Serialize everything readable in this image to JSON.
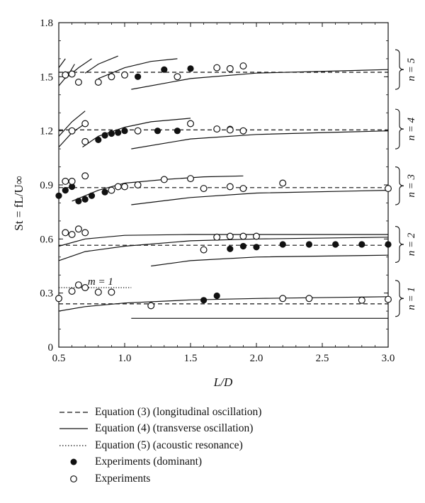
{
  "chart_data": {
    "type": "scatter",
    "xlabel": "L/D",
    "ylabel": "St = fL/U∞",
    "xlim": [
      0.5,
      3.0
    ],
    "ylim": [
      0,
      1.8
    ],
    "xticks": [
      "0.5",
      "1.0",
      "1.5",
      "2.0",
      "2.5",
      "3.0"
    ],
    "yticks": [
      "0",
      "0.3",
      "0.6",
      "0.9",
      "1.2",
      "1.5",
      "1.8"
    ],
    "grid": false,
    "mode_labels": [
      "n = 1",
      "n = 2",
      "n = 3",
      "n = 4",
      "n = 5"
    ],
    "mode_ranges": [
      [
        0.17,
        0.37
      ],
      [
        0.47,
        0.67
      ],
      [
        0.79,
        1.0
      ],
      [
        1.1,
        1.32
      ],
      [
        1.43,
        1.65
      ]
    ],
    "m_label": "m = 1",
    "legend": [
      {
        "symbol": "dashed",
        "label": "Equation (3) (longitudinal oscillation)"
      },
      {
        "symbol": "solid",
        "label": "Equation (4) (transverse oscillation)"
      },
      {
        "symbol": "dotted",
        "label": "Equation (5) (acoustic resonance)"
      },
      {
        "symbol": "filled",
        "label": "Experiments (dominant)"
      },
      {
        "symbol": "open",
        "label": "Experiments"
      }
    ],
    "series": [
      {
        "name": "Equation (3) (longitudinal oscillation)",
        "style": "dashed",
        "lines": [
          {
            "x": [
              0.5,
              3.0
            ],
            "y": [
              0.24,
              0.24
            ]
          },
          {
            "x": [
              0.5,
              3.0
            ],
            "y": [
              0.565,
              0.565
            ]
          },
          {
            "x": [
              0.5,
              3.0
            ],
            "y": [
              0.885,
              0.885
            ]
          },
          {
            "x": [
              0.5,
              3.0
            ],
            "y": [
              1.205,
              1.205
            ]
          },
          {
            "x": [
              0.5,
              3.0
            ],
            "y": [
              1.525,
              1.525
            ]
          }
        ]
      },
      {
        "name": "Equation (4) (transverse oscillation)",
        "style": "solid",
        "lines": [
          {
            "x": [
              1.05,
              3.0
            ],
            "y": [
              0.16,
              0.16
            ]
          },
          {
            "x": [
              0.5,
              0.7,
              1.0,
              1.5,
              2.0,
              3.0
            ],
            "y": [
              0.2,
              0.225,
              0.245,
              0.262,
              0.27,
              0.28
            ]
          },
          {
            "x": [
              1.2,
              1.5,
              2.0,
              3.0
            ],
            "y": [
              0.45,
              0.48,
              0.5,
              0.51
            ]
          },
          {
            "x": [
              0.5,
              0.7,
              1.0,
              1.5,
              2.0,
              3.0
            ],
            "y": [
              0.48,
              0.53,
              0.56,
              0.59,
              0.6,
              0.61
            ]
          },
          {
            "x": [
              0.5,
              0.7,
              1.0,
              1.5,
              2.0,
              3.0
            ],
            "y": [
              0.56,
              0.6,
              0.62,
              0.625,
              0.625,
              0.625
            ]
          },
          {
            "x": [
              1.05,
              1.5,
              2.0,
              3.0
            ],
            "y": [
              0.79,
              0.83,
              0.855,
              0.87
            ]
          },
          {
            "x": [
              0.6,
              0.8,
              1.0,
              1.3,
              1.6,
              1.9
            ],
            "y": [
              0.81,
              0.87,
              0.91,
              0.93,
              0.945,
              0.95
            ]
          },
          {
            "x": [
              1.05,
              1.5,
              2.0,
              3.0
            ],
            "y": [
              1.1,
              1.155,
              1.18,
              1.2
            ]
          },
          {
            "x": [
              0.68,
              0.8,
              1.0,
              1.2,
              1.5
            ],
            "y": [
              1.11,
              1.17,
              1.22,
              1.25,
              1.27
            ]
          },
          {
            "x": [
              0.5,
              0.6,
              0.7
            ],
            "y": [
              1.11,
              1.19,
              1.24
            ]
          },
          {
            "x": [
              0.5,
              0.6,
              0.7
            ],
            "y": [
              1.17,
              1.25,
              1.31
            ]
          },
          {
            "x": [
              1.05,
              1.5,
              2.0,
              3.0
            ],
            "y": [
              1.43,
              1.49,
              1.52,
              1.54
            ]
          },
          {
            "x": [
              0.8,
              1.0,
              1.2,
              1.4
            ],
            "y": [
              1.49,
              1.55,
              1.585,
              1.6
            ]
          },
          {
            "x": [
              0.7,
              0.8,
              0.95
            ],
            "y": [
              1.52,
              1.57,
              1.615
            ]
          },
          {
            "x": [
              0.55,
              0.65,
              0.75
            ],
            "y": [
              1.49,
              1.55,
              1.6
            ]
          },
          {
            "x": [
              0.5,
              0.58,
              0.62
            ],
            "y": [
              1.45,
              1.52,
              1.57
            ]
          },
          {
            "x": [
              0.5,
              0.55
            ],
            "y": [
              1.55,
              1.6
            ]
          }
        ]
      },
      {
        "name": "Equation (5) (acoustic resonance)",
        "style": "dotted",
        "lines": [
          {
            "x": [
              0.5,
              1.05
            ],
            "y": [
              0.33,
              0.33
            ]
          }
        ]
      },
      {
        "name": "Experiments (dominant)",
        "style": "filled",
        "x": [
          1.1,
          1.3,
          1.5,
          0.8,
          0.85,
          0.9,
          0.95,
          1.0,
          1.1,
          1.25,
          1.4,
          1.8,
          0.5,
          0.55,
          0.6,
          0.65,
          0.7,
          0.75,
          0.85,
          1.6,
          1.7,
          1.8,
          1.9,
          2.0,
          2.2,
          2.4,
          2.6,
          2.8,
          3.0
        ],
        "y": [
          1.5,
          1.54,
          1.545,
          1.15,
          1.175,
          1.185,
          1.19,
          1.2,
          1.2,
          1.2,
          1.2,
          1.21,
          0.84,
          0.87,
          0.89,
          0.81,
          0.82,
          0.84,
          0.86,
          0.26,
          0.285,
          0.545,
          0.56,
          0.555,
          0.57,
          0.57,
          0.57,
          0.57,
          0.57
        ]
      },
      {
        "name": "Experiments",
        "style": "open",
        "x": [
          0.55,
          0.6,
          0.65,
          0.7,
          0.8,
          0.9,
          1.0,
          1.4,
          1.7,
          1.8,
          1.9,
          0.6,
          0.7,
          1.1,
          1.5,
          1.7,
          1.8,
          1.9,
          0.55,
          0.6,
          0.7,
          0.9,
          0.95,
          1.0,
          1.1,
          1.3,
          1.5,
          1.6,
          1.8,
          1.9,
          2.2,
          3.0,
          0.55,
          0.6,
          0.65,
          0.7,
          0.5,
          0.6,
          0.65,
          0.7,
          0.8,
          0.9,
          1.2,
          1.6,
          1.7,
          1.8,
          1.9,
          2.0,
          2.2,
          2.4,
          2.8,
          3.0
        ],
        "y": [
          1.51,
          1.515,
          1.47,
          1.14,
          1.47,
          1.5,
          1.51,
          1.5,
          1.55,
          1.545,
          1.56,
          1.2,
          1.24,
          1.2,
          1.24,
          1.21,
          1.205,
          1.2,
          0.92,
          0.92,
          0.95,
          0.87,
          0.89,
          0.89,
          0.9,
          0.93,
          0.935,
          0.88,
          0.89,
          0.88,
          0.91,
          0.88,
          0.635,
          0.625,
          0.655,
          0.635,
          0.27,
          0.31,
          0.345,
          0.33,
          0.305,
          0.305,
          0.23,
          0.54,
          0.61,
          0.615,
          0.615,
          0.615,
          0.27,
          0.27,
          0.26,
          0.265
        ]
      }
    ]
  }
}
